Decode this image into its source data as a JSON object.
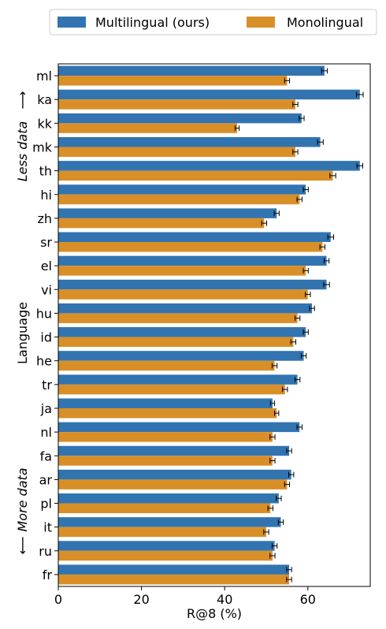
{
  "chart_data": {
    "type": "bar",
    "orientation": "horizontal",
    "xlabel": "R@8 (%)",
    "ylabel": "Language",
    "xlim": [
      0,
      75
    ],
    "xticks": [
      0,
      20,
      40,
      60
    ],
    "legend_position": "top",
    "annotations": {
      "top": "Less data",
      "top_arrow": "⟶",
      "bottom": "More data",
      "bottom_arrow": "⟵"
    },
    "categories": [
      "ml",
      "ka",
      "kk",
      "mk",
      "th",
      "hi",
      "zh",
      "sr",
      "el",
      "vi",
      "hu",
      "id",
      "he",
      "tr",
      "ja",
      "nl",
      "fa",
      "ar",
      "pl",
      "it",
      "ru",
      "fr"
    ],
    "series": [
      {
        "name": "Multilingual (ours)",
        "color": "#3274b0",
        "values": [
          64.0,
          72.5,
          58.5,
          63.0,
          72.5,
          59.5,
          52.5,
          65.5,
          64.5,
          64.5,
          61.0,
          59.5,
          59.0,
          57.5,
          51.5,
          58.0,
          55.5,
          56.0,
          53.0,
          53.5,
          52.0,
          55.5
        ],
        "errors": [
          0.7,
          0.8,
          0.6,
          0.7,
          0.7,
          0.6,
          0.6,
          0.7,
          0.6,
          0.7,
          0.6,
          0.6,
          0.6,
          0.6,
          0.5,
          0.6,
          0.6,
          0.6,
          0.6,
          0.6,
          0.6,
          0.6
        ]
      },
      {
        "name": "Monolingual",
        "color": "#d98f28",
        "values": [
          55.0,
          57.0,
          43.0,
          57.0,
          66.0,
          58.0,
          49.5,
          63.5,
          59.5,
          60.0,
          57.5,
          56.5,
          52.0,
          54.5,
          52.5,
          51.5,
          51.5,
          55.0,
          51.0,
          50.0,
          51.5,
          55.5
        ],
        "errors": [
          0.6,
          0.6,
          0.5,
          0.6,
          0.7,
          0.6,
          0.6,
          0.6,
          0.6,
          0.6,
          0.6,
          0.6,
          0.6,
          0.6,
          0.5,
          0.6,
          0.6,
          0.6,
          0.6,
          0.6,
          0.6,
          0.6
        ]
      }
    ]
  }
}
